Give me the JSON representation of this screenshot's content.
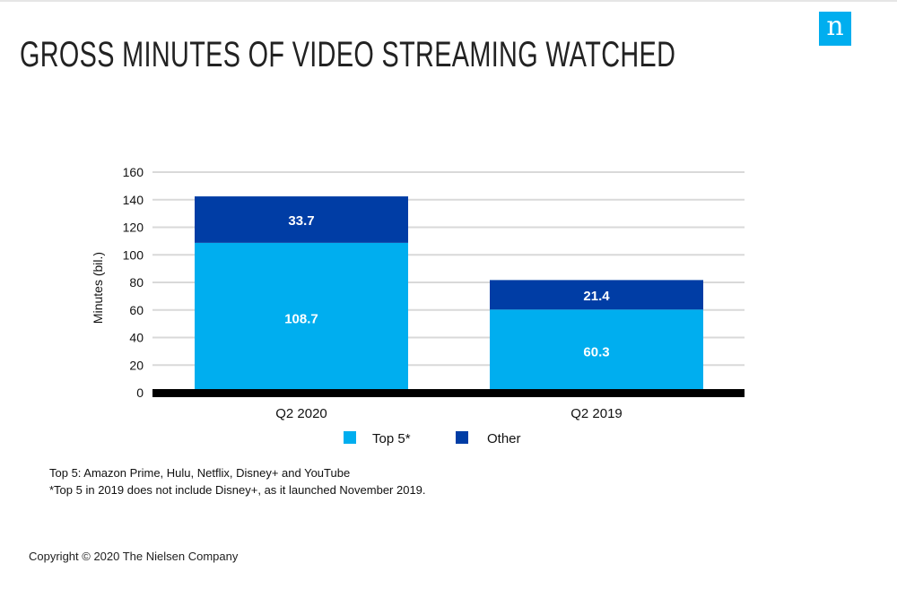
{
  "title": "GROSS MINUTES OF VIDEO STREAMING WATCHED",
  "logo_text": "n",
  "footnotes": [
    "Top 5: Amazon Prime, Hulu, Netflix, Disney+ and YouTube",
    "*Top 5 in 2019 does not include Disney+, as it launched November 2019."
  ],
  "copyright": "Copyright © 2020 The Nielsen Company",
  "colors": {
    "top5": "#00aeef",
    "other": "#003da5",
    "baseline": "#000000",
    "grid": "#d9d9d9"
  },
  "chart_data": {
    "type": "bar",
    "stacked": true,
    "categories": [
      "Q2 2020",
      "Q2 2019"
    ],
    "series": [
      {
        "name": "Top 5*",
        "values": [
          108.7,
          60.3
        ]
      },
      {
        "name": "Other",
        "values": [
          33.7,
          21.4
        ]
      }
    ],
    "ylabel": "Minutes (bil.)",
    "xlabel": "",
    "ylim": [
      0,
      160
    ],
    "yticks": [
      0,
      20,
      40,
      60,
      80,
      100,
      120,
      140,
      160
    ],
    "grid": true,
    "legend_position": "bottom"
  }
}
